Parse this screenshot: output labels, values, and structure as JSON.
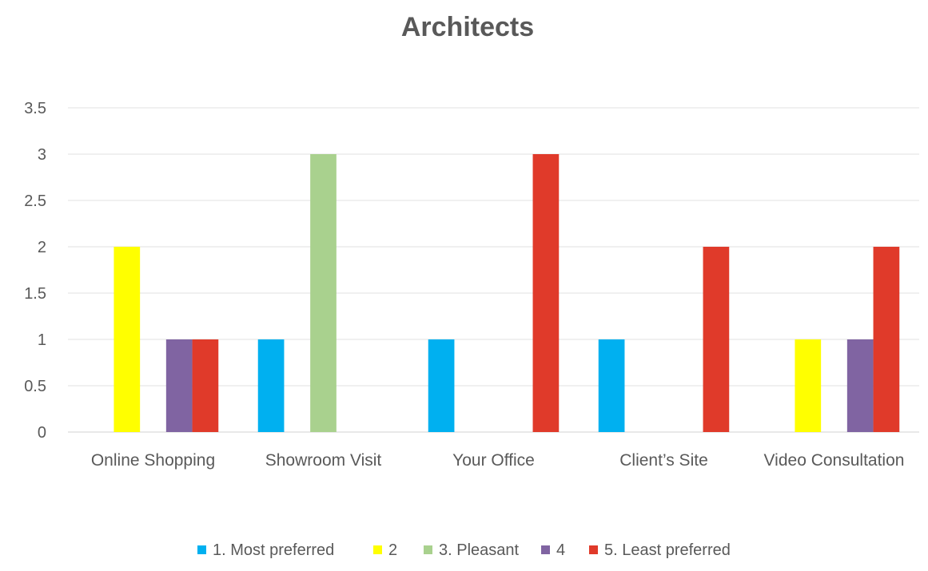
{
  "chart_data": {
    "type": "bar",
    "title": "Architects",
    "xlabel": "",
    "ylabel": "",
    "ylim": [
      0,
      3.5
    ],
    "yticks": [
      "0",
      "0.5",
      "1",
      "1.5",
      "2",
      "2.5",
      "3",
      "3.5"
    ],
    "grid": true,
    "legend_position": "bottom",
    "categories": [
      "Online Shopping",
      "Showroom Visit",
      "Your Office",
      "Client’s Site",
      "Video Consultation"
    ],
    "series": [
      {
        "name": "1. Most preferred",
        "color": "#00B0F0",
        "values": [
          0,
          1,
          1,
          1,
          0
        ]
      },
      {
        "name": "2",
        "color": "#FFFF00",
        "values": [
          2,
          0,
          0,
          0,
          1
        ]
      },
      {
        "name": "3. Pleasant",
        "color": "#A9D18E",
        "values": [
          0,
          3,
          0,
          0,
          0
        ]
      },
      {
        "name": "4",
        "color": "#8064A2",
        "values": [
          1,
          0,
          0,
          0,
          1
        ]
      },
      {
        "name": "5. Least preferred",
        "color": "#E03A2A",
        "values": [
          1,
          0,
          3,
          2,
          2
        ]
      }
    ]
  }
}
